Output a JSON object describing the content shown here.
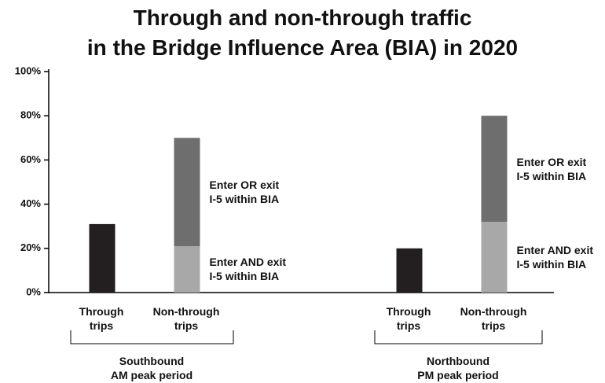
{
  "chart_data": {
    "type": "stacked_bar",
    "title": "Through and non-through traffic\nin the Bridge Influence Area (BIA) in 2020",
    "categories": [
      "Through\ntrips",
      "Non-through\ntrips",
      "Through\ntrips",
      "Non-through\ntrips"
    ],
    "groups": [
      "Southbound\nAM peak period",
      "Northbound\nPM peak period"
    ],
    "series": [
      {
        "color": "#231f20",
        "values": [
          31,
          null,
          20,
          null
        ]
      },
      {
        "name": "Enter AND exit\nI-5 within BIA",
        "color": "#a8a8a8",
        "values": [
          null,
          21,
          null,
          32
        ]
      },
      {
        "name": "Enter OR exit\nI-5 within BIA",
        "color": "#6e6e6e",
        "values": [
          null,
          49,
          null,
          48
        ]
      }
    ],
    "ylim": [
      0,
      100
    ],
    "yticks": [
      {
        "value": 0,
        "label": "0%"
      },
      {
        "value": 20,
        "label": "20%"
      },
      {
        "value": 40,
        "label": "40%"
      },
      {
        "value": 60,
        "label": "60%"
      },
      {
        "value": 80,
        "label": "80%"
      },
      {
        "value": 100,
        "label": "100%"
      }
    ],
    "grid": false
  }
}
